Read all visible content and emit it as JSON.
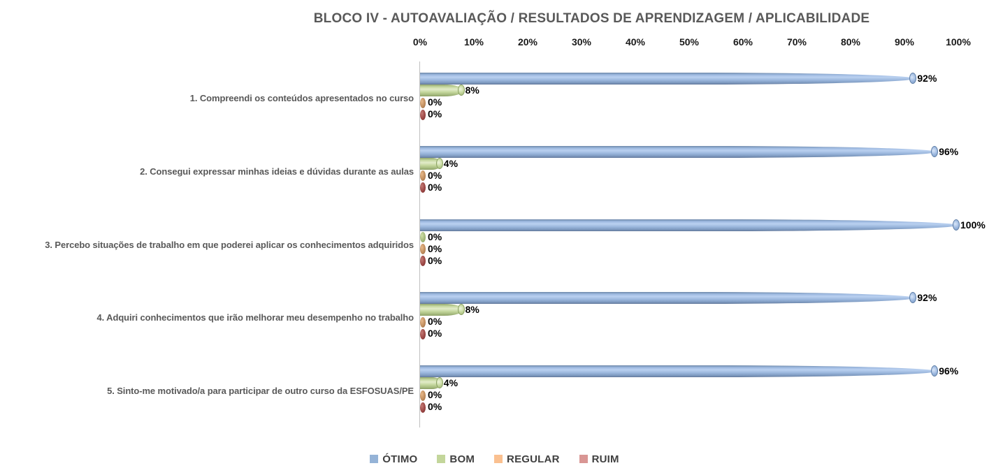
{
  "title": "BLOCO IV - AUTOAVALIAÇÃO / RESULTADOS DE APRENDIZAGEM / APLICABILIDADE",
  "chart_data": {
    "type": "bar",
    "orientation": "horizontal",
    "title": "BLOCO IV - AUTOAVALIAÇÃO / RESULTADOS DE APRENDIZAGEM / APLICABILIDADE",
    "categories": [
      "1. Compreendi os conteúdos apresentados no curso",
      "2. Consegui expressar minhas ideias e dúvidas durante as aulas",
      "3. Percebo situações de trabalho em que poderei aplicar os conhecimentos adquiridos",
      "4. Adquiri conhecimentos que irão melhorar meu desempenho no trabalho",
      "5. Sinto-me motivado/a para participar de outro curso da ESFOSUAS/PE"
    ],
    "series": [
      {
        "name": "ÓTIMO",
        "color": "#95B3D7",
        "values": [
          92,
          96,
          100,
          92,
          96
        ]
      },
      {
        "name": "BOM",
        "color": "#C3D69B",
        "values": [
          8,
          4,
          0,
          8,
          4
        ]
      },
      {
        "name": "REGULAR",
        "color": "#FAC090",
        "values": [
          0,
          0,
          0,
          0,
          0
        ]
      },
      {
        "name": "RUIM",
        "color": "#D99694",
        "values": [
          0,
          0,
          0,
          0,
          0
        ]
      }
    ],
    "value_labels": [
      [
        "92%",
        "8%",
        "0%",
        "0%"
      ],
      [
        "96%",
        "4%",
        "0%",
        "0%"
      ],
      [
        "100%",
        "0%",
        "0%",
        "0%"
      ],
      [
        "92%",
        "8%",
        "0%",
        "0%"
      ],
      [
        "96%",
        "4%",
        "0%",
        "0%"
      ]
    ],
    "x_ticks": [
      "0%",
      "10%",
      "20%",
      "30%",
      "40%",
      "50%",
      "60%",
      "70%",
      "80%",
      "90%",
      "100%"
    ],
    "xlim": [
      0,
      100
    ],
    "grid": false,
    "legend_position": "bottom"
  }
}
